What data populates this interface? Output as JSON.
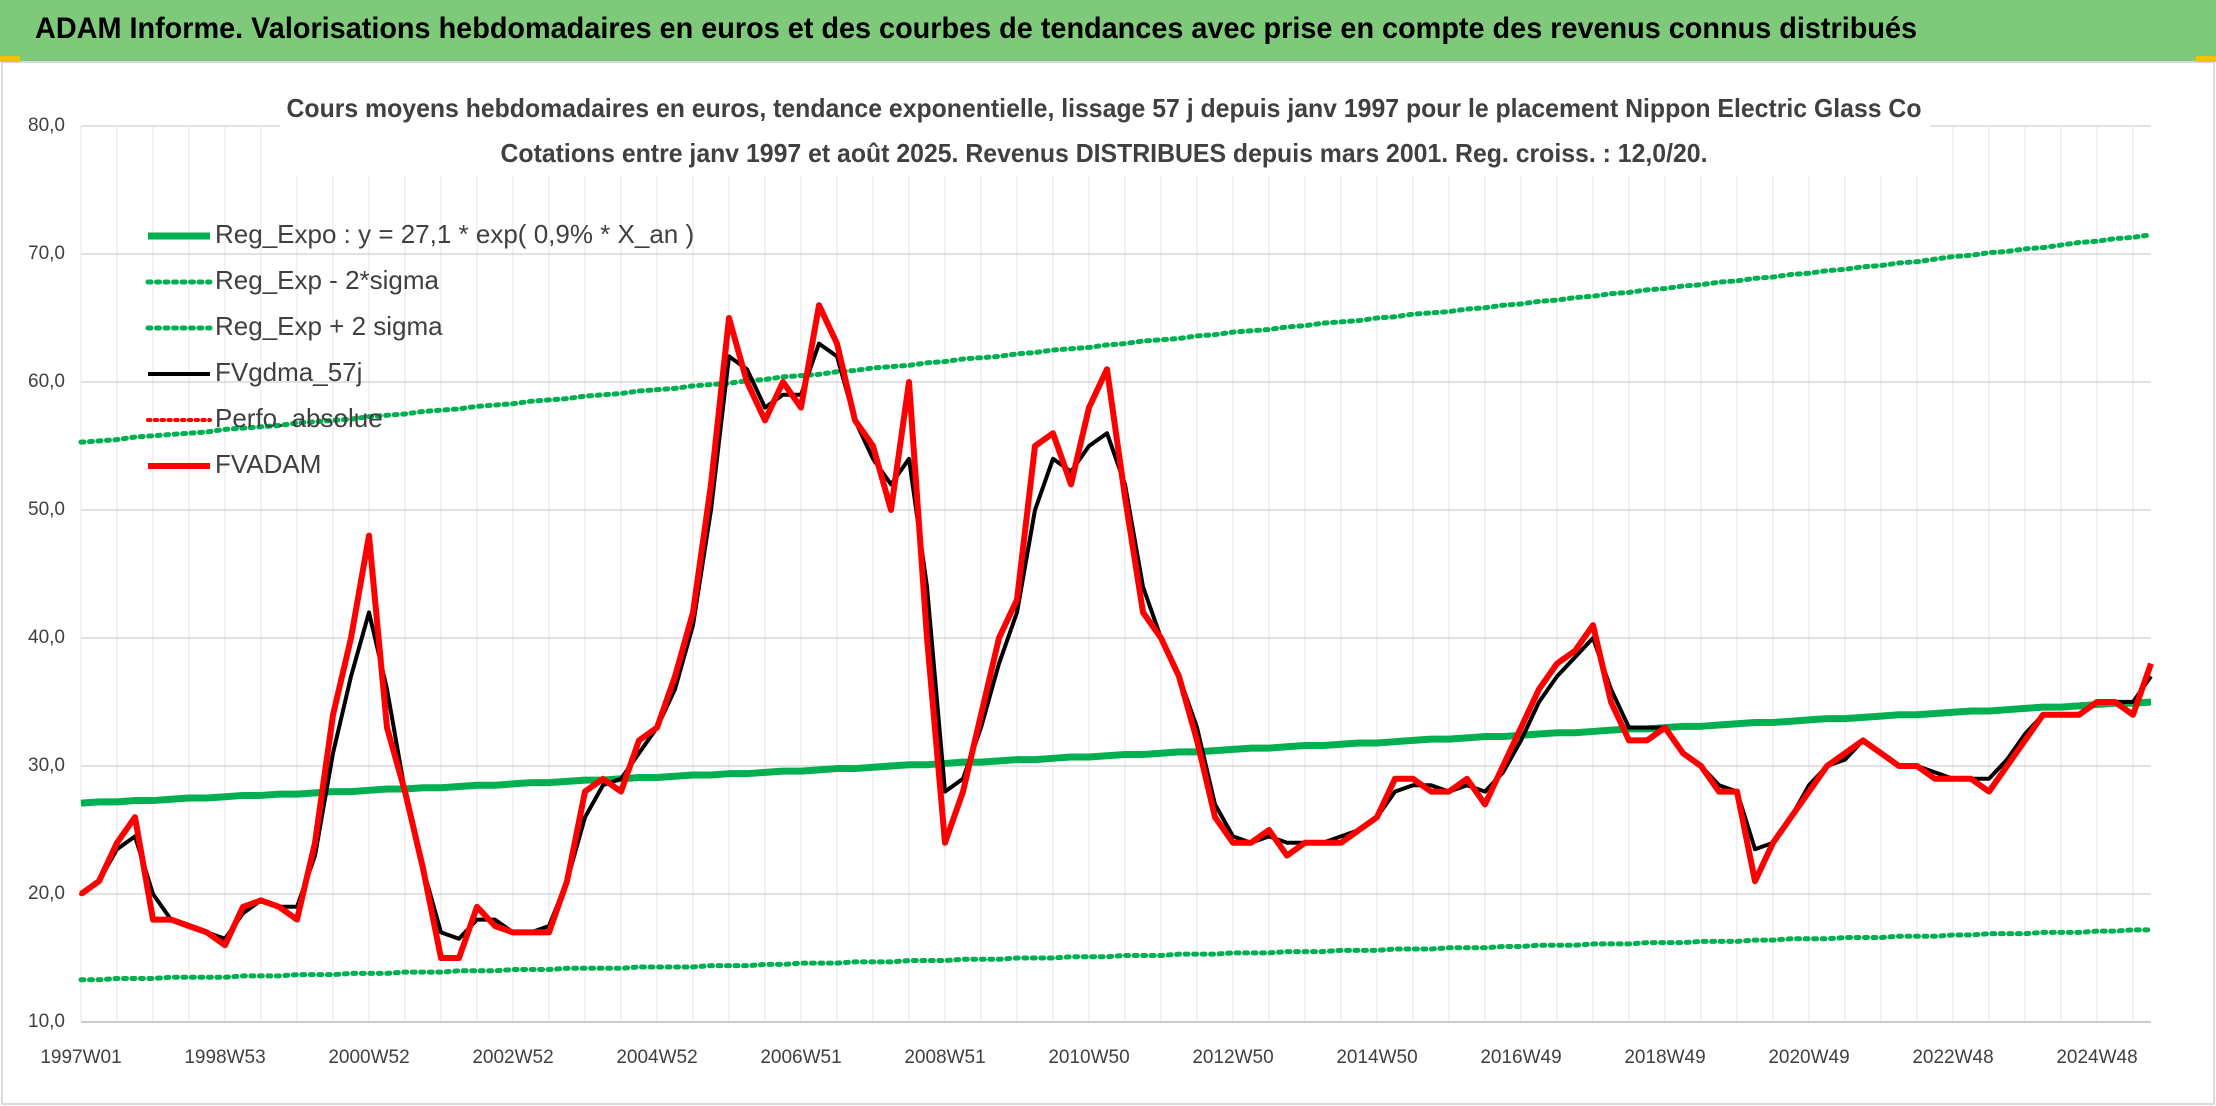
{
  "header": {
    "title": "ADAM Informe. Valorisations hebdomadaires en euros et des courbes de tendances avec prise en compte des revenus connus distribués"
  },
  "chart_data": {
    "type": "line",
    "title": "Cours moyens hebdomadaires en euros, tendance exponentielle, lissage 57 j depuis janv 1997 pour le placement Nippon Electric Glass Co",
    "subtitle": "Cotations entre janv 1997 et août 2025. Revenus DISTRIBUES depuis mars 2001. Reg. croiss. : 12,0/20.",
    "grid": true,
    "legend": "top-left",
    "ylim": [
      10,
      80
    ],
    "yticks": [
      {
        "value": 10,
        "label": "10,0"
      },
      {
        "value": 20,
        "label": "20,0"
      },
      {
        "value": 30,
        "label": "30,0"
      },
      {
        "value": 40,
        "label": "40,0"
      },
      {
        "value": 50,
        "label": "50,0"
      },
      {
        "value": 60,
        "label": "60,0"
      },
      {
        "value": 70,
        "label": "70,0"
      },
      {
        "value": 80,
        "label": "80,0"
      }
    ],
    "categories": [
      "1997W01",
      null,
      null,
      null,
      null,
      null,
      null,
      null,
      "1998W53",
      null,
      null,
      null,
      null,
      null,
      null,
      null,
      "2000W52",
      null,
      null,
      null,
      null,
      null,
      null,
      null,
      "2002W52",
      null,
      null,
      null,
      null,
      null,
      null,
      null,
      "2004W52",
      null,
      null,
      null,
      null,
      null,
      null,
      null,
      "2006W51",
      null,
      null,
      null,
      null,
      null,
      null,
      null,
      "2008W51",
      null,
      null,
      null,
      null,
      null,
      null,
      null,
      "2010W50",
      null,
      null,
      null,
      null,
      null,
      null,
      null,
      "2012W50",
      null,
      null,
      null,
      null,
      null,
      null,
      null,
      "2014W50",
      null,
      null,
      null,
      null,
      null,
      null,
      null,
      "2016W49",
      null,
      null,
      null,
      null,
      null,
      null,
      null,
      "2018W49",
      null,
      null,
      null,
      null,
      null,
      null,
      null,
      "2020W49",
      null,
      null,
      null,
      null,
      null,
      null,
      null,
      "2022W48",
      null,
      null,
      null,
      null,
      null,
      null,
      null,
      "2024W48",
      null,
      null,
      null
    ],
    "series": [
      {
        "name": "Reg_Expo : y = 27,1 * exp( 0,9% *  X_an )",
        "color": "#00b050",
        "width": 7,
        "dash": "solid",
        "values": [
          27.1,
          27.2,
          27.2,
          27.3,
          27.3,
          27.4,
          27.5,
          27.5,
          27.6,
          27.7,
          27.7,
          27.8,
          27.8,
          27.9,
          28.0,
          28.0,
          28.1,
          28.2,
          28.2,
          28.3,
          28.3,
          28.4,
          28.5,
          28.5,
          28.6,
          28.7,
          28.7,
          28.8,
          28.9,
          28.9,
          29.0,
          29.1,
          29.1,
          29.2,
          29.3,
          29.3,
          29.4,
          29.4,
          29.5,
          29.6,
          29.6,
          29.7,
          29.8,
          29.8,
          29.9,
          30.0,
          30.1,
          30.1,
          30.2,
          30.3,
          30.3,
          30.4,
          30.5,
          30.5,
          30.6,
          30.7,
          30.7,
          30.8,
          30.9,
          30.9,
          31.0,
          31.1,
          31.1,
          31.2,
          31.3,
          31.4,
          31.4,
          31.5,
          31.6,
          31.6,
          31.7,
          31.8,
          31.8,
          31.9,
          32.0,
          32.1,
          32.1,
          32.2,
          32.3,
          32.3,
          32.4,
          32.5,
          32.6,
          32.6,
          32.7,
          32.8,
          32.9,
          32.9,
          33.0,
          33.1,
          33.1,
          33.2,
          33.3,
          33.4,
          33.4,
          33.5,
          33.6,
          33.7,
          33.7,
          33.8,
          33.9,
          34.0,
          34.0,
          34.1,
          34.2,
          34.3,
          34.3,
          34.4,
          34.5,
          34.6,
          34.6,
          34.7,
          34.8,
          34.9,
          34.9,
          35.0
        ]
      },
      {
        "name": "Reg_Exp - 2*sigma",
        "color": "#00b050",
        "width": 5,
        "dash": "dotted",
        "values": [
          13.3,
          13.3,
          13.4,
          13.4,
          13.4,
          13.5,
          13.5,
          13.5,
          13.5,
          13.6,
          13.6,
          13.6,
          13.7,
          13.7,
          13.7,
          13.8,
          13.8,
          13.8,
          13.9,
          13.9,
          13.9,
          14.0,
          14.0,
          14.0,
          14.1,
          14.1,
          14.1,
          14.2,
          14.2,
          14.2,
          14.2,
          14.3,
          14.3,
          14.3,
          14.3,
          14.4,
          14.4,
          14.4,
          14.5,
          14.5,
          14.6,
          14.6,
          14.6,
          14.7,
          14.7,
          14.7,
          14.8,
          14.8,
          14.8,
          14.9,
          14.9,
          14.9,
          15.0,
          15.0,
          15.0,
          15.1,
          15.1,
          15.1,
          15.2,
          15.2,
          15.2,
          15.3,
          15.3,
          15.3,
          15.4,
          15.4,
          15.4,
          15.5,
          15.5,
          15.5,
          15.6,
          15.6,
          15.6,
          15.7,
          15.7,
          15.7,
          15.8,
          15.8,
          15.8,
          15.9,
          15.9,
          16.0,
          16.0,
          16.0,
          16.1,
          16.1,
          16.1,
          16.2,
          16.2,
          16.2,
          16.3,
          16.3,
          16.3,
          16.4,
          16.4,
          16.5,
          16.5,
          16.5,
          16.6,
          16.6,
          16.6,
          16.7,
          16.7,
          16.7,
          16.8,
          16.8,
          16.9,
          16.9,
          16.9,
          17.0,
          17.0,
          17.0,
          17.1,
          17.1,
          17.2,
          17.2
        ]
      },
      {
        "name": "Reg_Exp + 2 sigma",
        "color": "#00b050",
        "width": 5,
        "dash": "dotted",
        "values": [
          55.3,
          55.4,
          55.5,
          55.7,
          55.8,
          55.9,
          56.0,
          56.1,
          56.3,
          56.4,
          56.5,
          56.6,
          56.8,
          56.9,
          57.0,
          57.1,
          57.3,
          57.4,
          57.5,
          57.7,
          57.8,
          57.9,
          58.1,
          58.2,
          58.3,
          58.5,
          58.6,
          58.7,
          58.9,
          59.0,
          59.1,
          59.3,
          59.4,
          59.5,
          59.7,
          59.8,
          59.9,
          60.1,
          60.2,
          60.4,
          60.5,
          60.6,
          60.8,
          60.9,
          61.1,
          61.2,
          61.3,
          61.5,
          61.6,
          61.8,
          61.9,
          62.0,
          62.2,
          62.3,
          62.5,
          62.6,
          62.7,
          62.9,
          63.0,
          63.2,
          63.3,
          63.4,
          63.6,
          63.7,
          63.9,
          64.0,
          64.1,
          64.3,
          64.4,
          64.6,
          64.7,
          64.8,
          65.0,
          65.1,
          65.3,
          65.4,
          65.5,
          65.7,
          65.8,
          66.0,
          66.1,
          66.3,
          66.4,
          66.6,
          66.7,
          66.9,
          67.0,
          67.2,
          67.3,
          67.5,
          67.6,
          67.8,
          67.9,
          68.1,
          68.2,
          68.4,
          68.5,
          68.7,
          68.8,
          69.0,
          69.1,
          69.3,
          69.4,
          69.6,
          69.8,
          69.9,
          70.1,
          70.2,
          70.4,
          70.5,
          70.7,
          70.9,
          71.0,
          71.2,
          71.3,
          71.5
        ]
      },
      {
        "name": "FVgdma_57j",
        "color": "#000000",
        "width": 4,
        "dash": "solid",
        "values": [
          20,
          21,
          23.5,
          24.5,
          20,
          18,
          17.5,
          17,
          16.5,
          18.5,
          19.5,
          19,
          19,
          23,
          31,
          37,
          42,
          36,
          28,
          22,
          17,
          16.5,
          18,
          18,
          17,
          17,
          17.5,
          21,
          26,
          28.5,
          29,
          31,
          33,
          36,
          41,
          50,
          62,
          61,
          58,
          59,
          59,
          63,
          62,
          57,
          54,
          52,
          54,
          44,
          28,
          29,
          33,
          38,
          42,
          50,
          54,
          53,
          55,
          56,
          52,
          44,
          40,
          37,
          33,
          27,
          24.5,
          24,
          24.5,
          24,
          24,
          24,
          24.5,
          25,
          26,
          28,
          28.5,
          28.5,
          28,
          28.5,
          28,
          29.5,
          32,
          35,
          37,
          38.5,
          40,
          36,
          33,
          33,
          33,
          31,
          30,
          28.5,
          28,
          23.5,
          24,
          26,
          28.5,
          30,
          30.5,
          32,
          31,
          30,
          30,
          29.5,
          29,
          29,
          29,
          30.5,
          32.5,
          34,
          34,
          34,
          35,
          35,
          35,
          37
        ]
      },
      {
        "name": "Perfo. absolue",
        "color": "#ff0000",
        "width": 4,
        "dash": "dotted",
        "values": [
          20,
          21,
          24,
          26,
          18,
          18,
          17.5,
          17,
          16,
          19,
          19.5,
          19,
          18,
          24,
          34,
          40,
          48,
          33,
          28,
          22,
          15,
          15,
          19,
          17.5,
          17,
          17,
          17,
          21,
          28,
          29,
          28,
          32,
          33,
          37,
          42,
          52,
          65,
          60,
          57,
          60,
          58,
          66,
          63,
          57,
          55,
          50,
          60,
          40,
          24,
          28,
          34,
          40,
          43,
          55,
          56,
          52,
          58,
          61,
          51,
          42,
          40,
          37,
          32,
          26,
          24,
          24,
          25,
          23,
          24,
          24,
          24,
          25,
          26,
          29,
          29,
          28,
          28,
          29,
          27,
          30,
          33,
          36,
          38,
          39,
          41,
          35,
          32,
          32,
          33,
          31,
          30,
          28,
          28,
          21,
          24,
          26,
          28,
          30,
          31,
          32,
          31,
          30,
          30,
          29,
          29,
          29,
          28,
          30,
          32,
          34,
          34,
          34,
          35,
          35,
          34,
          38
        ]
      },
      {
        "name": "FVADAM",
        "color": "#ff0000",
        "width": 6,
        "dash": "solid",
        "values": [
          20,
          21,
          24,
          26,
          18,
          18,
          17.5,
          17,
          16,
          19,
          19.5,
          19,
          18,
          24,
          34,
          40,
          48,
          33,
          28,
          22,
          15,
          15,
          19,
          17.5,
          17,
          17,
          17,
          21,
          28,
          29,
          28,
          32,
          33,
          37,
          42,
          52,
          65,
          60,
          57,
          60,
          58,
          66,
          63,
          57,
          55,
          50,
          60,
          40,
          24,
          28,
          34,
          40,
          43,
          55,
          56,
          52,
          58,
          61,
          51,
          42,
          40,
          37,
          32,
          26,
          24,
          24,
          25,
          23,
          24,
          24,
          24,
          25,
          26,
          29,
          29,
          28,
          28,
          29,
          27,
          30,
          33,
          36,
          38,
          39,
          41,
          35,
          32,
          32,
          33,
          31,
          30,
          28,
          28,
          21,
          24,
          26,
          28,
          30,
          31,
          32,
          31,
          30,
          30,
          29,
          29,
          29,
          28,
          30,
          32,
          34,
          34,
          34,
          35,
          35,
          34,
          38
        ]
      }
    ]
  }
}
